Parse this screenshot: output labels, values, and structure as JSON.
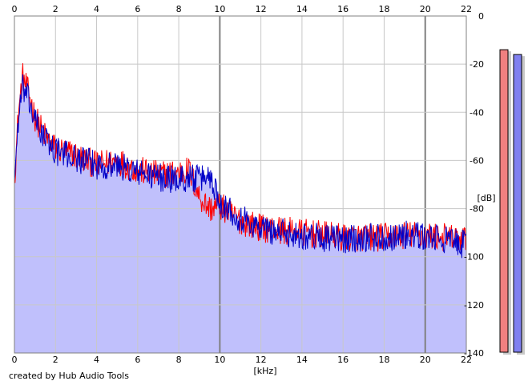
{
  "credit": "created by Hub Audio Tools",
  "colors": {
    "background": "#ffffff",
    "fill": "#c0c0fc",
    "channel_left": "#ff0000",
    "channel_right": "#0000c8",
    "grid": "#c8c8c8",
    "grid_major": "#808080",
    "meter_left": "#f08080",
    "meter_right": "#8080f0"
  },
  "chart_data": {
    "type": "line",
    "xlabel": "[kHz]",
    "ylabel": "[dB]",
    "xlim": [
      0,
      22
    ],
    "ylim": [
      -140,
      0
    ],
    "x_ticks": [
      "0",
      "2",
      "4",
      "6",
      "8",
      "10",
      "12",
      "14",
      "16",
      "18",
      "20",
      "22"
    ],
    "y_ticks": [
      "0",
      "-20",
      "-40",
      "-60",
      "-80",
      "-100",
      "-120",
      "-140"
    ],
    "grid": true,
    "area_fill": true,
    "series": [
      {
        "channel": "left",
        "x_khz": [
          0,
          0.2,
          0.4,
          0.6,
          0.8,
          1,
          1.5,
          2,
          3,
          4,
          5,
          6,
          7,
          8,
          8.5,
          9,
          9.5,
          10,
          11,
          12,
          13,
          14,
          15,
          16,
          17,
          18,
          19,
          20,
          21,
          22
        ],
        "db": [
          -68,
          -40,
          -25,
          -30,
          -35,
          -42,
          -50,
          -55,
          -58,
          -62,
          -60,
          -64,
          -66,
          -65,
          -64,
          -75,
          -80,
          -79,
          -85,
          -88,
          -89,
          -90,
          -91,
          -92,
          -92,
          -92,
          -91,
          -91,
          -92,
          -93
        ]
      },
      {
        "channel": "right",
        "x_khz": [
          0,
          0.2,
          0.4,
          0.6,
          0.8,
          1,
          1.5,
          2,
          3,
          4,
          5,
          6,
          7,
          8,
          8.5,
          9,
          9.5,
          10,
          11,
          12,
          13,
          14,
          15,
          16,
          17,
          18,
          19,
          20,
          21,
          22
        ],
        "db": [
          -68,
          -42,
          -30,
          -33,
          -38,
          -44,
          -51,
          -56,
          -59,
          -62,
          -62,
          -65,
          -67,
          -68,
          -67,
          -68,
          -66,
          -77,
          -84,
          -88,
          -90,
          -91,
          -92,
          -93,
          -92,
          -92,
          -91,
          -92,
          -93,
          -95
        ]
      }
    ],
    "meters": {
      "left_db": -14,
      "right_db": -16
    }
  }
}
